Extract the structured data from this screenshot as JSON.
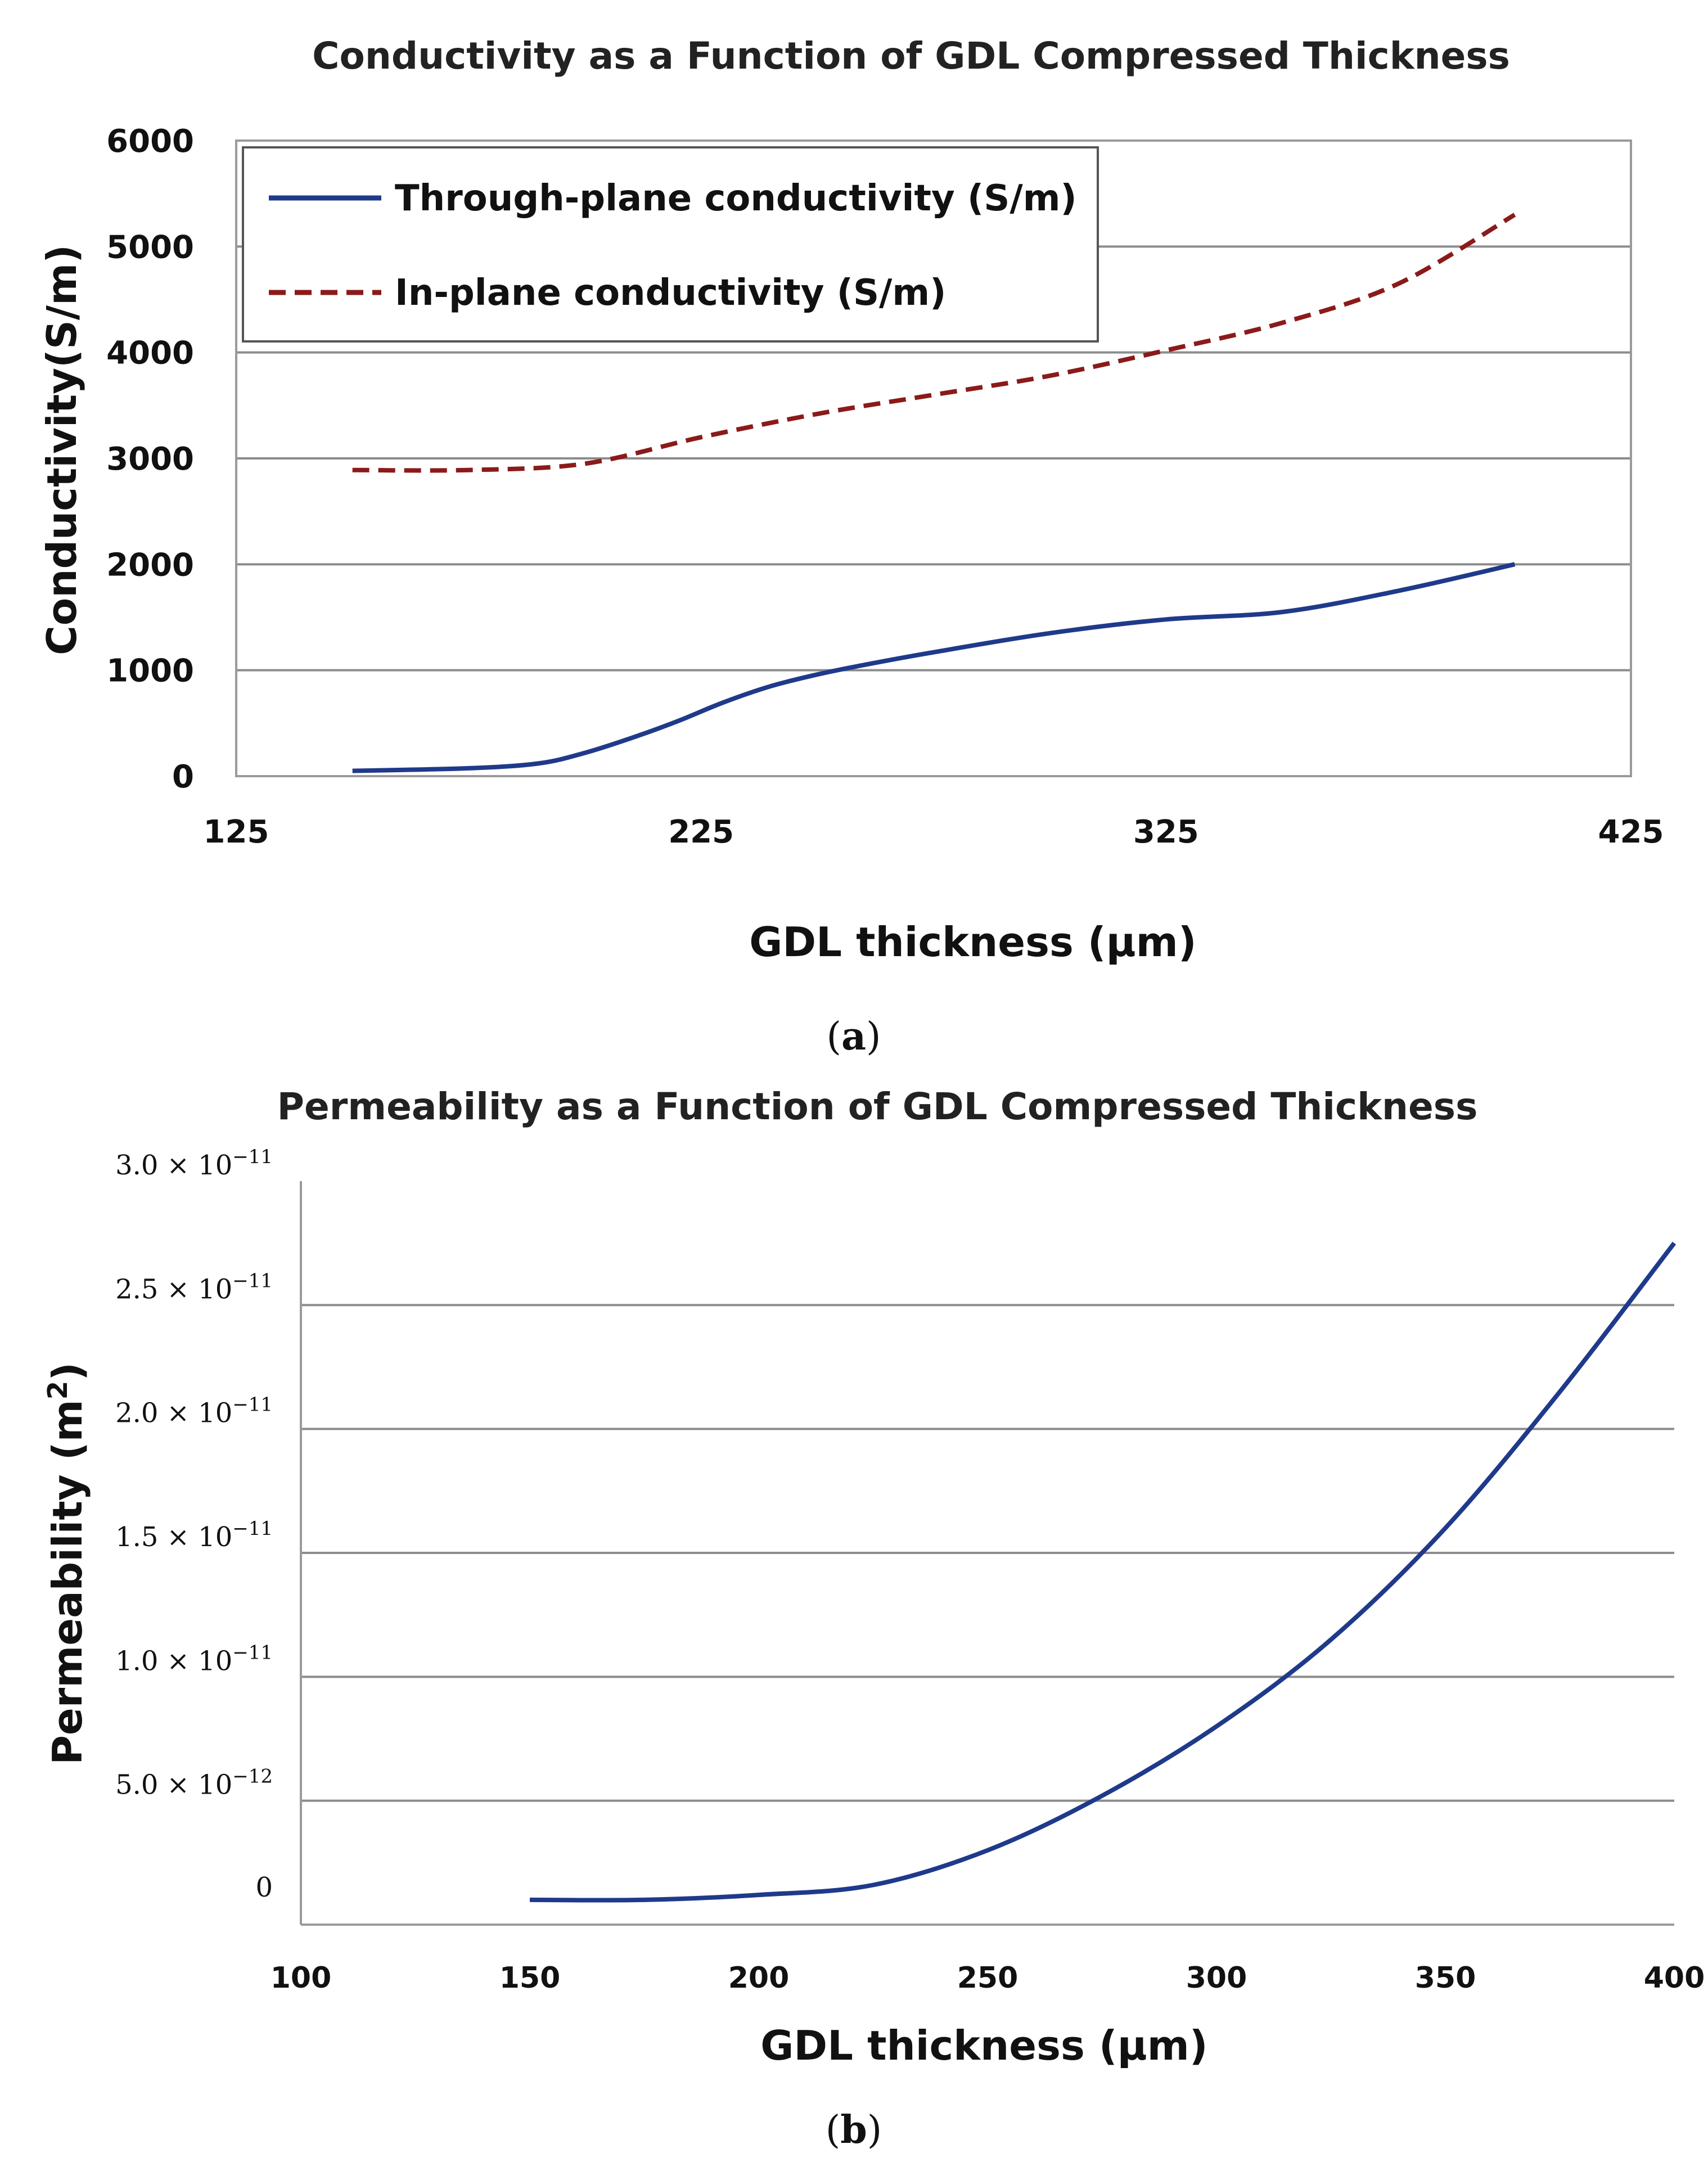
{
  "chart_data": [
    {
      "type": "line",
      "panel": "a",
      "caption_letter": "a",
      "title": "Conductivity as a Function of GDL Compressed Thickness",
      "xlabel": "GDL thickness (μm)",
      "ylabel": "Conductivity(S/m)",
      "xlim": [
        125,
        425
      ],
      "ylim": [
        0,
        6000
      ],
      "x_ticks": [
        "125",
        "225",
        "325",
        "425"
      ],
      "y_ticks": [
        "0",
        "1000",
        "2000",
        "3000",
        "4000",
        "5000",
        "6000"
      ],
      "grid": "horizontal",
      "legend_position": "top-left",
      "series": [
        {
          "name": "Through-plane conductivity (S/m)",
          "color": "#1f3a8a",
          "style": "solid",
          "x": [
            150,
            175,
            190,
            200,
            210,
            220,
            230,
            240,
            250,
            260,
            275,
            300,
            325,
            350,
            375,
            400
          ],
          "y": [
            50,
            75,
            120,
            220,
            360,
            520,
            700,
            850,
            960,
            1050,
            1170,
            1350,
            1480,
            1550,
            1750,
            2000
          ]
        },
        {
          "name": "In-plane conductivity (S/m)",
          "color": "#8b1a1a",
          "style": "dashed",
          "x": [
            150,
            175,
            200,
            225,
            250,
            275,
            300,
            325,
            350,
            375,
            400
          ],
          "y": [
            2890,
            2890,
            2950,
            3200,
            3420,
            3600,
            3780,
            4020,
            4280,
            4650,
            5300
          ]
        }
      ]
    },
    {
      "type": "line",
      "panel": "b",
      "caption_letter": "b",
      "title": "Permeability as a Function of GDL Compressed Thickness",
      "xlabel": "GDL thickness (μm)",
      "ylabel": "Permeability (m",
      "ylabel_exp": "2",
      "ylabel_close": ")",
      "xlim": [
        100,
        400
      ],
      "ylim": [
        0,
        3e-11
      ],
      "x_ticks": [
        "100",
        "150",
        "200",
        "250",
        "300",
        "350",
        "400"
      ],
      "y_ticks": [
        {
          "mant": "0",
          "exp": ""
        },
        {
          "mant": "5.0 × 10",
          "exp": "−12"
        },
        {
          "mant": "1.0 × 10",
          "exp": "−11"
        },
        {
          "mant": "1.5 × 10",
          "exp": "−11"
        },
        {
          "mant": "2.0 × 10",
          "exp": "−11"
        },
        {
          "mant": "2.5 × 10",
          "exp": "−11"
        },
        {
          "mant": "3.0 × 10",
          "exp": "−11"
        }
      ],
      "grid": "horizontal",
      "series": [
        {
          "name": "Permeability",
          "color": "#1f3a8a",
          "style": "solid",
          "x": [
            150,
            175,
            200,
            225,
            250,
            275,
            300,
            325,
            350,
            375,
            400
          ],
          "y": [
            1e-12,
            1e-12,
            1.2e-12,
            1.6e-12,
            3e-12,
            5.2e-12,
            8e-12,
            1.15e-11,
            1.6e-11,
            2.15e-11,
            2.75e-11
          ]
        }
      ]
    }
  ]
}
